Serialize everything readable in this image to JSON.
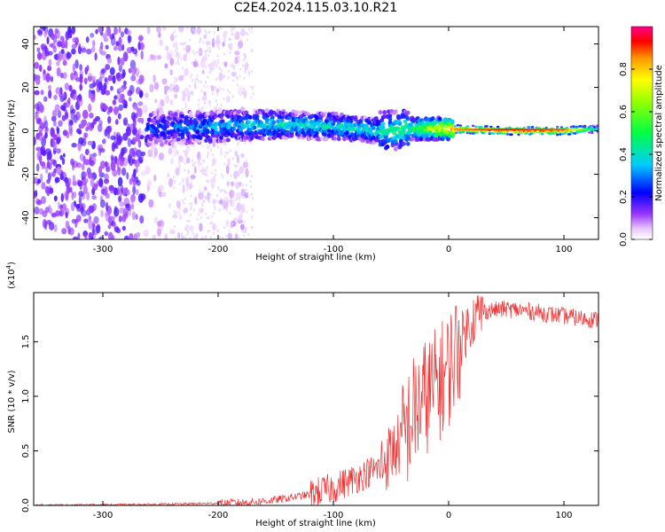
{
  "title": "C2E4.2024.115.03.10.R21",
  "chart_data": [
    {
      "type": "heatmap",
      "name": "spectrogram",
      "xlabel": "Height of straight line (km)",
      "ylabel": "Frequency (Hz)",
      "xlim": [
        -360,
        130
      ],
      "ylim": [
        -50,
        48
      ],
      "xticks": [
        -300,
        -200,
        -100,
        0,
        100
      ],
      "yticks": [
        -40,
        -20,
        0,
        20,
        40
      ],
      "colorbar": {
        "label": "Normalized spectral amplitude",
        "range": [
          0.0,
          1.0
        ],
        "ticks": [
          0.0,
          0.2,
          0.4,
          0.6,
          0.8
        ]
      },
      "ridge": [
        {
          "x": -250,
          "freq": 1.0,
          "amplitude": 0.25
        },
        {
          "x": -200,
          "freq": 2.0,
          "amplitude": 0.35
        },
        {
          "x": -150,
          "freq": 3.0,
          "amplitude": 0.4
        },
        {
          "x": -100,
          "freq": 2.0,
          "amplitude": 0.4
        },
        {
          "x": -60,
          "freq": 0.0,
          "amplitude": 0.42
        },
        {
          "x": -30,
          "freq": 1.0,
          "amplitude": 0.5
        },
        {
          "x": 0,
          "freq": 1.0,
          "amplitude": 0.85
        },
        {
          "x": 50,
          "freq": 0.0,
          "amplitude": 0.92
        },
        {
          "x": 100,
          "freq": 0.0,
          "amplitude": 0.88
        },
        {
          "x": 130,
          "freq": 1.0,
          "amplitude": 0.35
        }
      ]
    },
    {
      "type": "line",
      "name": "snr",
      "xlabel": "Height of straight line (km)",
      "ylabel": "SNR (10 * v/v)",
      "multiplier_label": "(x10",
      "multiplier_exponent": "4",
      "multiplier_close": ")",
      "xlim": [
        -360,
        130
      ],
      "ylim": [
        0.0,
        1.95
      ],
      "xticks": [
        -300,
        -200,
        -100,
        0,
        100
      ],
      "yticks": [
        0.0,
        0.5,
        1.0,
        1.5
      ],
      "ytick_labels": [
        "0.0",
        "0.5",
        "1.0",
        "1.5"
      ],
      "color": "#ee3333",
      "series": [
        {
          "name": "SNR",
          "x": [
            -360,
            -300,
            -250,
            -200,
            -170,
            -150,
            -120,
            -100,
            -80,
            -60,
            -40,
            -30,
            -20,
            -10,
            0,
            10,
            20,
            30,
            50,
            70,
            90,
            110,
            130
          ],
          "y": [
            0.002,
            0.005,
            0.01,
            0.02,
            0.03,
            0.05,
            0.1,
            0.16,
            0.25,
            0.35,
            0.6,
            0.85,
            1.0,
            1.1,
            1.25,
            1.5,
            1.7,
            1.78,
            1.8,
            1.78,
            1.75,
            1.72,
            1.7
          ]
        }
      ]
    }
  ]
}
